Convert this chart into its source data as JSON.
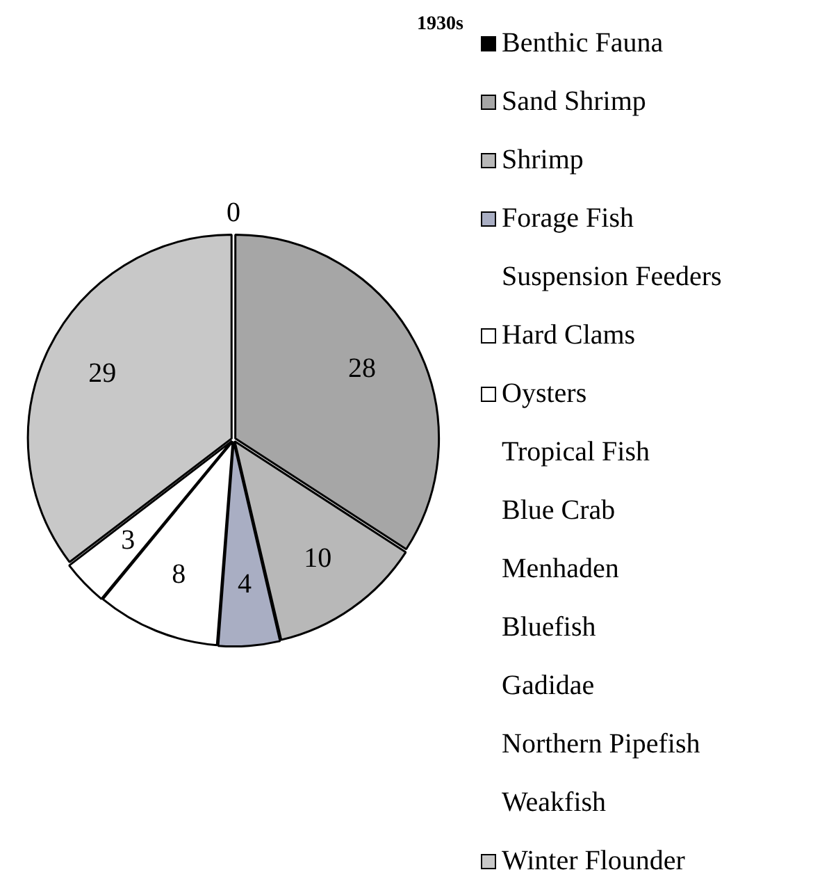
{
  "chart_data": {
    "type": "pie",
    "title": "1930s",
    "categories": [
      "Benthic Fauna",
      "Sand Shrimp",
      "Shrimp",
      "Forage Fish",
      "Suspension Feeders",
      "Hard Clams",
      "Oysters",
      "Tropical Fish",
      "Blue Crab",
      "Menhaden",
      "Bluefish",
      "Gadidae",
      "Northern Pipefish",
      "Weakfish",
      "Winter Flounder"
    ],
    "values": [
      0,
      28,
      10,
      4,
      null,
      8,
      3,
      null,
      null,
      null,
      null,
      null,
      null,
      null,
      29
    ],
    "colors": [
      "#000000",
      "#a6a6a6",
      "#b8b8b8",
      "#a9aec3",
      null,
      "#ffffff",
      "#ffffff",
      null,
      null,
      null,
      null,
      null,
      null,
      null,
      "#c8c8c8"
    ],
    "value_labels": [
      null,
      "28",
      "10",
      "4",
      null,
      "8",
      "3",
      null,
      null,
      null,
      null,
      null,
      null,
      null,
      "29"
    ],
    "annotations": [
      "0"
    ],
    "legend": "right"
  }
}
